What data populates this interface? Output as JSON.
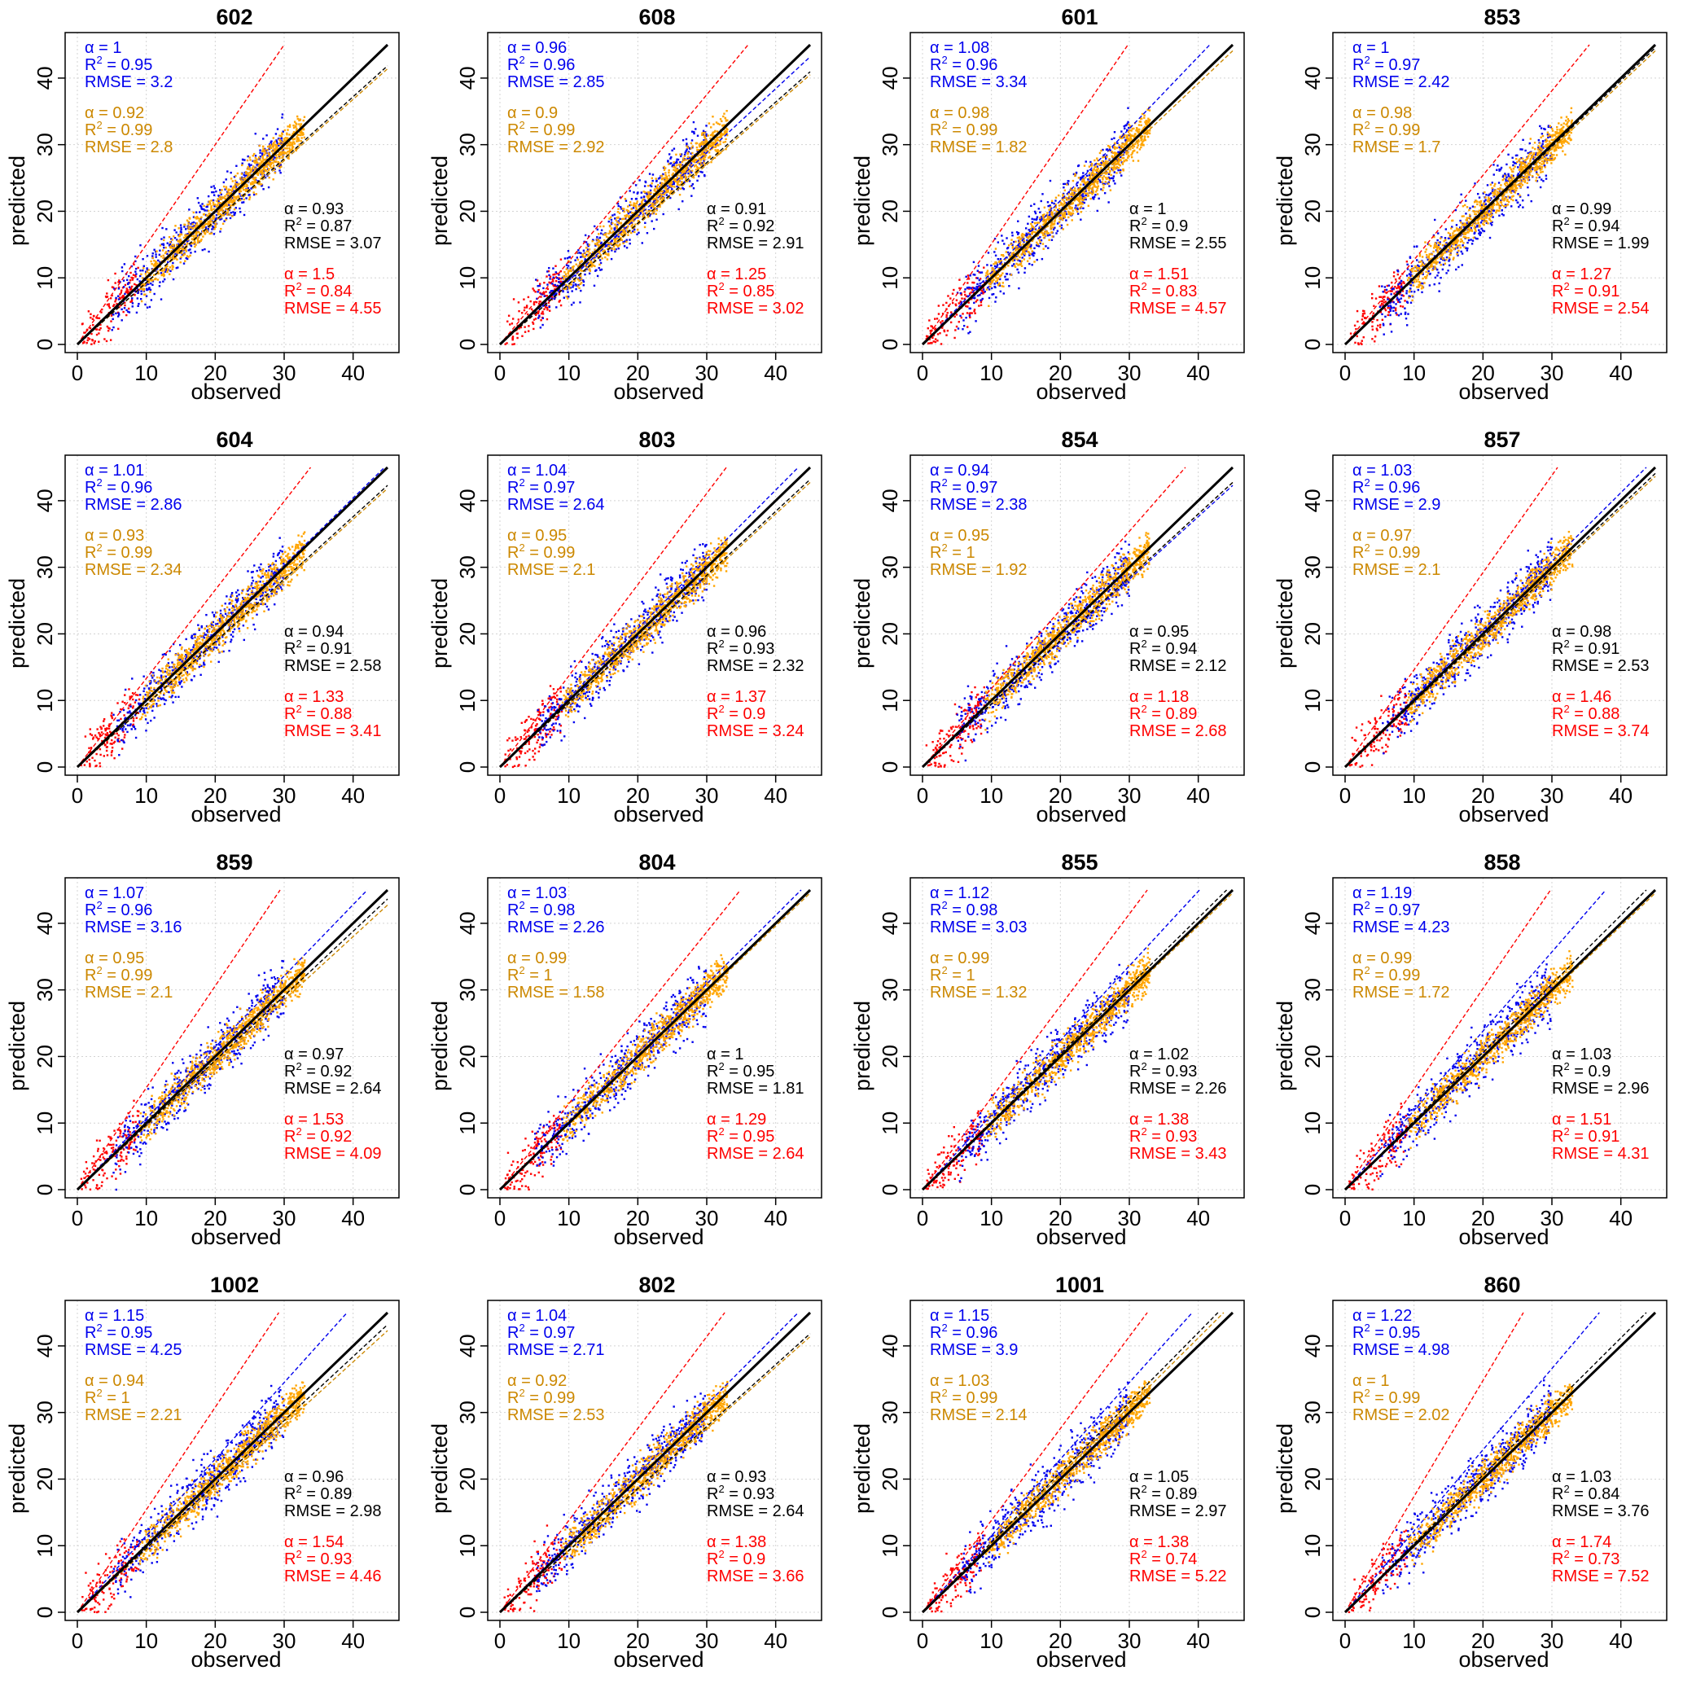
{
  "chart_data": {
    "type": "scatter",
    "xlabel": "observed",
    "ylabel": "predicted",
    "xlim": [
      0,
      45
    ],
    "ylim": [
      0,
      45
    ],
    "ticks": [
      0,
      10,
      20,
      30,
      40
    ],
    "grid": true,
    "colors": {
      "blue": "#0000ee",
      "orange": "#cc8800",
      "orange_points": "#ffa500",
      "black": "#000000",
      "red": "#ff0000"
    },
    "panels": [
      {
        "title": "602",
        "blue": {
          "alpha": "1",
          "r2": "0.95",
          "rmse": "3.2"
        },
        "orange": {
          "alpha": "0.92",
          "r2": "0.99",
          "rmse": "2.8"
        },
        "black": {
          "alpha": "0.93",
          "r2": "0.87",
          "rmse": "3.07"
        },
        "red": {
          "alpha": "1.5",
          "r2": "0.84",
          "rmse": "4.55"
        }
      },
      {
        "title": "608",
        "blue": {
          "alpha": "0.96",
          "r2": "0.96",
          "rmse": "2.85"
        },
        "orange": {
          "alpha": "0.9",
          "r2": "0.99",
          "rmse": "2.92"
        },
        "black": {
          "alpha": "0.91",
          "r2": "0.92",
          "rmse": "2.91"
        },
        "red": {
          "alpha": "1.25",
          "r2": "0.85",
          "rmse": "3.02"
        }
      },
      {
        "title": "601",
        "blue": {
          "alpha": "1.08",
          "r2": "0.96",
          "rmse": "3.34"
        },
        "orange": {
          "alpha": "0.98",
          "r2": "0.99",
          "rmse": "1.82"
        },
        "black": {
          "alpha": "1",
          "r2": "0.9",
          "rmse": "2.55"
        },
        "red": {
          "alpha": "1.51",
          "r2": "0.83",
          "rmse": "4.57"
        }
      },
      {
        "title": "853",
        "blue": {
          "alpha": "1",
          "r2": "0.97",
          "rmse": "2.42"
        },
        "orange": {
          "alpha": "0.98",
          "r2": "0.99",
          "rmse": "1.7"
        },
        "black": {
          "alpha": "0.99",
          "r2": "0.94",
          "rmse": "1.99"
        },
        "red": {
          "alpha": "1.27",
          "r2": "0.91",
          "rmse": "2.54"
        }
      },
      {
        "title": "604",
        "blue": {
          "alpha": "1.01",
          "r2": "0.96",
          "rmse": "2.86"
        },
        "orange": {
          "alpha": "0.93",
          "r2": "0.99",
          "rmse": "2.34"
        },
        "black": {
          "alpha": "0.94",
          "r2": "0.91",
          "rmse": "2.58"
        },
        "red": {
          "alpha": "1.33",
          "r2": "0.88",
          "rmse": "3.41"
        }
      },
      {
        "title": "803",
        "blue": {
          "alpha": "1.04",
          "r2": "0.97",
          "rmse": "2.64"
        },
        "orange": {
          "alpha": "0.95",
          "r2": "0.99",
          "rmse": "2.1"
        },
        "black": {
          "alpha": "0.96",
          "r2": "0.93",
          "rmse": "2.32"
        },
        "red": {
          "alpha": "1.37",
          "r2": "0.9",
          "rmse": "3.24"
        }
      },
      {
        "title": "854",
        "blue": {
          "alpha": "0.94",
          "r2": "0.97",
          "rmse": "2.38"
        },
        "orange": {
          "alpha": "0.95",
          "r2": "1",
          "rmse": "1.92"
        },
        "black": {
          "alpha": "0.95",
          "r2": "0.94",
          "rmse": "2.12"
        },
        "red": {
          "alpha": "1.18",
          "r2": "0.89",
          "rmse": "2.68"
        }
      },
      {
        "title": "857",
        "blue": {
          "alpha": "1.03",
          "r2": "0.96",
          "rmse": "2.9"
        },
        "orange": {
          "alpha": "0.97",
          "r2": "0.99",
          "rmse": "2.1"
        },
        "black": {
          "alpha": "0.98",
          "r2": "0.91",
          "rmse": "2.53"
        },
        "red": {
          "alpha": "1.46",
          "r2": "0.88",
          "rmse": "3.74"
        }
      },
      {
        "title": "859",
        "blue": {
          "alpha": "1.07",
          "r2": "0.96",
          "rmse": "3.16"
        },
        "orange": {
          "alpha": "0.95",
          "r2": "0.99",
          "rmse": "2.1"
        },
        "black": {
          "alpha": "0.97",
          "r2": "0.92",
          "rmse": "2.64"
        },
        "red": {
          "alpha": "1.53",
          "r2": "0.92",
          "rmse": "4.09"
        }
      },
      {
        "title": "804",
        "blue": {
          "alpha": "1.03",
          "r2": "0.98",
          "rmse": "2.26"
        },
        "orange": {
          "alpha": "0.99",
          "r2": "1",
          "rmse": "1.58"
        },
        "black": {
          "alpha": "1",
          "r2": "0.95",
          "rmse": "1.81"
        },
        "red": {
          "alpha": "1.29",
          "r2": "0.95",
          "rmse": "2.64"
        }
      },
      {
        "title": "855",
        "blue": {
          "alpha": "1.12",
          "r2": "0.98",
          "rmse": "3.03"
        },
        "orange": {
          "alpha": "0.99",
          "r2": "1",
          "rmse": "1.32"
        },
        "black": {
          "alpha": "1.02",
          "r2": "0.93",
          "rmse": "2.26"
        },
        "red": {
          "alpha": "1.38",
          "r2": "0.93",
          "rmse": "3.43"
        }
      },
      {
        "title": "858",
        "blue": {
          "alpha": "1.19",
          "r2": "0.97",
          "rmse": "4.23"
        },
        "orange": {
          "alpha": "0.99",
          "r2": "0.99",
          "rmse": "1.72"
        },
        "black": {
          "alpha": "1.03",
          "r2": "0.9",
          "rmse": "2.96"
        },
        "red": {
          "alpha": "1.51",
          "r2": "0.91",
          "rmse": "4.31"
        }
      },
      {
        "title": "1002",
        "blue": {
          "alpha": "1.15",
          "r2": "0.95",
          "rmse": "4.25"
        },
        "orange": {
          "alpha": "0.94",
          "r2": "1",
          "rmse": "2.21"
        },
        "black": {
          "alpha": "0.96",
          "r2": "0.89",
          "rmse": "2.98"
        },
        "red": {
          "alpha": "1.54",
          "r2": "0.93",
          "rmse": "4.46"
        }
      },
      {
        "title": "802",
        "blue": {
          "alpha": "1.04",
          "r2": "0.97",
          "rmse": "2.71"
        },
        "orange": {
          "alpha": "0.92",
          "r2": "0.99",
          "rmse": "2.53"
        },
        "black": {
          "alpha": "0.93",
          "r2": "0.93",
          "rmse": "2.64"
        },
        "red": {
          "alpha": "1.38",
          "r2": "0.9",
          "rmse": "3.66"
        }
      },
      {
        "title": "1001",
        "blue": {
          "alpha": "1.15",
          "r2": "0.96",
          "rmse": "3.9"
        },
        "orange": {
          "alpha": "1.03",
          "r2": "0.99",
          "rmse": "2.14"
        },
        "black": {
          "alpha": "1.05",
          "r2": "0.89",
          "rmse": "2.97"
        },
        "red": {
          "alpha": "1.38",
          "r2": "0.74",
          "rmse": "5.22"
        }
      },
      {
        "title": "860",
        "blue": {
          "alpha": "1.22",
          "r2": "0.95",
          "rmse": "4.98"
        },
        "orange": {
          "alpha": "1",
          "r2": "0.99",
          "rmse": "2.02"
        },
        "black": {
          "alpha": "1.03",
          "r2": "0.84",
          "rmse": "3.76"
        },
        "red": {
          "alpha": "1.74",
          "r2": "0.73",
          "rmse": "7.52"
        }
      }
    ]
  }
}
